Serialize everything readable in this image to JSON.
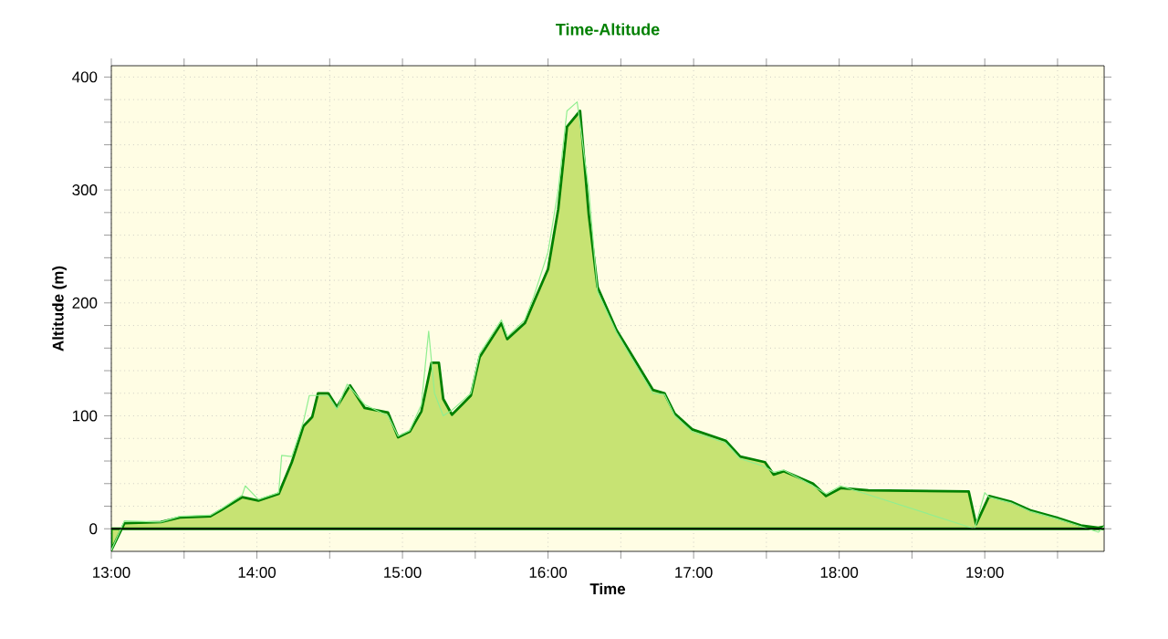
{
  "chart_data": {
    "type": "area",
    "title": "Time-Altitude",
    "xlabel": "Time",
    "ylabel": "Altitude (m)",
    "xlim": [
      13,
      19.82
    ],
    "ylim": [
      -20,
      410
    ],
    "xticks": [
      {
        "value": 13,
        "label": "13:00"
      },
      {
        "value": 13.5,
        "label": null
      },
      {
        "value": 14,
        "label": "14:00"
      },
      {
        "value": 14.5,
        "label": null
      },
      {
        "value": 15,
        "label": "15:00"
      },
      {
        "value": 15.5,
        "label": null
      },
      {
        "value": 16,
        "label": "16:00"
      },
      {
        "value": 16.5,
        "label": null
      },
      {
        "value": 17,
        "label": "17:00"
      },
      {
        "value": 17.5,
        "label": null
      },
      {
        "value": 18,
        "label": "18:00"
      },
      {
        "value": 18.5,
        "label": null
      },
      {
        "value": 19,
        "label": "19:00"
      },
      {
        "value": 19.5,
        "label": null
      }
    ],
    "yticks": [
      0,
      {
        "value": 20,
        "label": null
      },
      {
        "value": 40,
        "label": null
      },
      {
        "value": 60,
        "label": null
      },
      {
        "value": 80,
        "label": null
      },
      100,
      {
        "value": 120,
        "label": null
      },
      {
        "value": 140,
        "label": null
      },
      {
        "value": 160,
        "label": null
      },
      {
        "value": 180,
        "label": null
      },
      200,
      {
        "value": 220,
        "label": null
      },
      {
        "value": 240,
        "label": null
      },
      {
        "value": 260,
        "label": null
      },
      {
        "value": 280,
        "label": null
      },
      300,
      {
        "value": 320,
        "label": null
      },
      {
        "value": 340,
        "label": null
      },
      {
        "value": 360,
        "label": null
      },
      {
        "value": 380,
        "label": null
      },
      400
    ],
    "grid": true,
    "marker": "none",
    "ref_lines": [
      {
        "axis": "y",
        "value": 0,
        "color": "#000000"
      }
    ],
    "series": [
      {
        "type": "line",
        "color": "#90ee90",
        "x": [
          13.0,
          13.09,
          13.34,
          13.47,
          13.68,
          13.76,
          13.9,
          13.92,
          14.01,
          14.15,
          14.17,
          14.24,
          14.32,
          14.36,
          14.42,
          14.49,
          14.55,
          14.62,
          14.74,
          14.9,
          14.97,
          15.05,
          15.13,
          15.18,
          15.22,
          15.28,
          15.34,
          15.47,
          15.53,
          15.68,
          15.72,
          15.84,
          15.9,
          16.0,
          16.07,
          16.13,
          16.2,
          16.28,
          16.34,
          16.47,
          16.57,
          16.72,
          16.8,
          16.87,
          16.99,
          17.22,
          17.32,
          17.49,
          17.55,
          17.62,
          17.82,
          17.91,
          18.01,
          18.93,
          19.0,
          19.03,
          19.18,
          19.32,
          19.49,
          19.66,
          19.78,
          19.82
        ],
        "values": [
          -19,
          7,
          6,
          11,
          12,
          18,
          30,
          38,
          26,
          32,
          65,
          64,
          95,
          118,
          118,
          118,
          106,
          128,
          110,
          100,
          82,
          87,
          110,
          175,
          120,
          100,
          105,
          120,
          155,
          185,
          170,
          185,
          205,
          245,
          300,
          370,
          378,
          300,
          210,
          174,
          152,
          120,
          119,
          100,
          86,
          76,
          62,
          55,
          50,
          52,
          38,
          31,
          38,
          0,
          32,
          28,
          23,
          15,
          9,
          2,
          -3,
          2
        ]
      },
      {
        "color": "#008000",
        "x": [
          13.0,
          13.09,
          13.34,
          13.47,
          13.68,
          13.76,
          13.9,
          14.01,
          14.15,
          14.24,
          14.32,
          14.38,
          14.42,
          14.49,
          14.55,
          14.64,
          14.74,
          14.9,
          14.97,
          15.05,
          15.13,
          15.2,
          15.25,
          15.28,
          15.34,
          15.47,
          15.53,
          15.68,
          15.72,
          15.84,
          15.9,
          16.0,
          16.07,
          16.13,
          16.22,
          16.28,
          16.34,
          16.47,
          16.57,
          16.72,
          16.8,
          16.87,
          16.99,
          17.22,
          17.32,
          17.49,
          17.55,
          17.62,
          17.82,
          17.91,
          18.01,
          18.2,
          18.89,
          18.94,
          19.03,
          19.18,
          19.32,
          19.49,
          19.66,
          19.78,
          19.82
        ],
        "values": [
          -19,
          5,
          6,
          10,
          11,
          17,
          28,
          25,
          31,
          59,
          91,
          99,
          120,
          120,
          108,
          127,
          107,
          103,
          81,
          86,
          104,
          147,
          147,
          115,
          101,
          118,
          152,
          182,
          168,
          182,
          200,
          230,
          283,
          356,
          370,
          278,
          214,
          176,
          155,
          123,
          120,
          102,
          88,
          78,
          64,
          59,
          48,
          51,
          40,
          29,
          36,
          34,
          33,
          4,
          29,
          24,
          16,
          10,
          3,
          1,
          2
        ]
      }
    ]
  }
}
